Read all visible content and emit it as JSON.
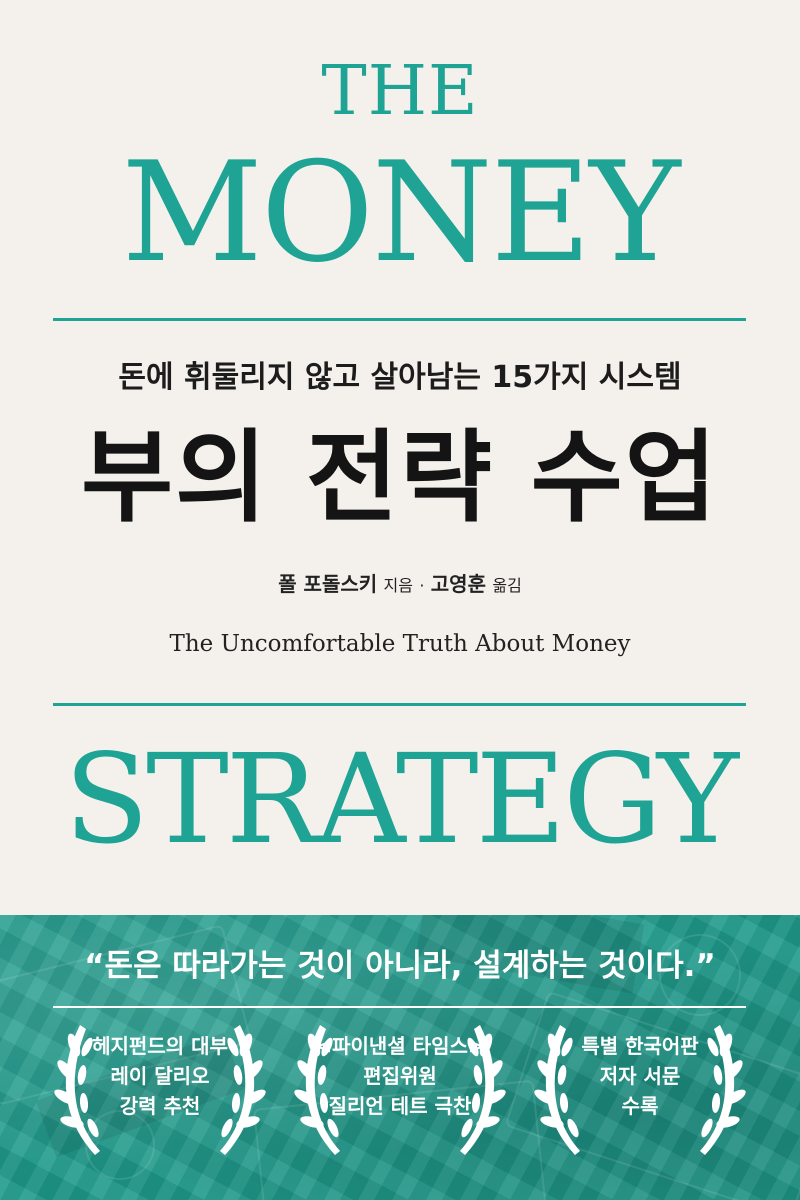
{
  "cover": {
    "title_line1": "THE",
    "title_line2": "MONEY",
    "subtitle_kr": "돈에 휘둘리지 않고 살아남는 15가지 시스템",
    "main_title_kr": "부의 전략 수업",
    "author": "폴 포돌스키",
    "author_role": "지음",
    "separator": "·",
    "translator": "고영훈",
    "translator_role": "옮김",
    "english_subtitle": "The Uncomfortable Truth About Money",
    "title_line3": "STRATEGY"
  },
  "band": {
    "quote": "“돈은 따라가는 것이 아니라, 설계하는 것이다.”",
    "awards": [
      {
        "lines": [
          "헤지펀드의 대부",
          "레이 달리오",
          "강력 추천"
        ]
      },
      {
        "lines": [
          "<파이낸셜 타임스>",
          "편집위원",
          "질리언 테트 극찬"
        ]
      },
      {
        "lines": [
          "특별 한국어판",
          "저자 서문",
          "수록"
        ]
      }
    ]
  },
  "colors": {
    "accent": "#1ea394",
    "background": "#f4f1ec",
    "band": "#1f9a8b",
    "text_dark": "#141414",
    "text_light": "#ffffff"
  },
  "icons": {
    "laurel_wreath": "laurel-wreath-icon"
  }
}
